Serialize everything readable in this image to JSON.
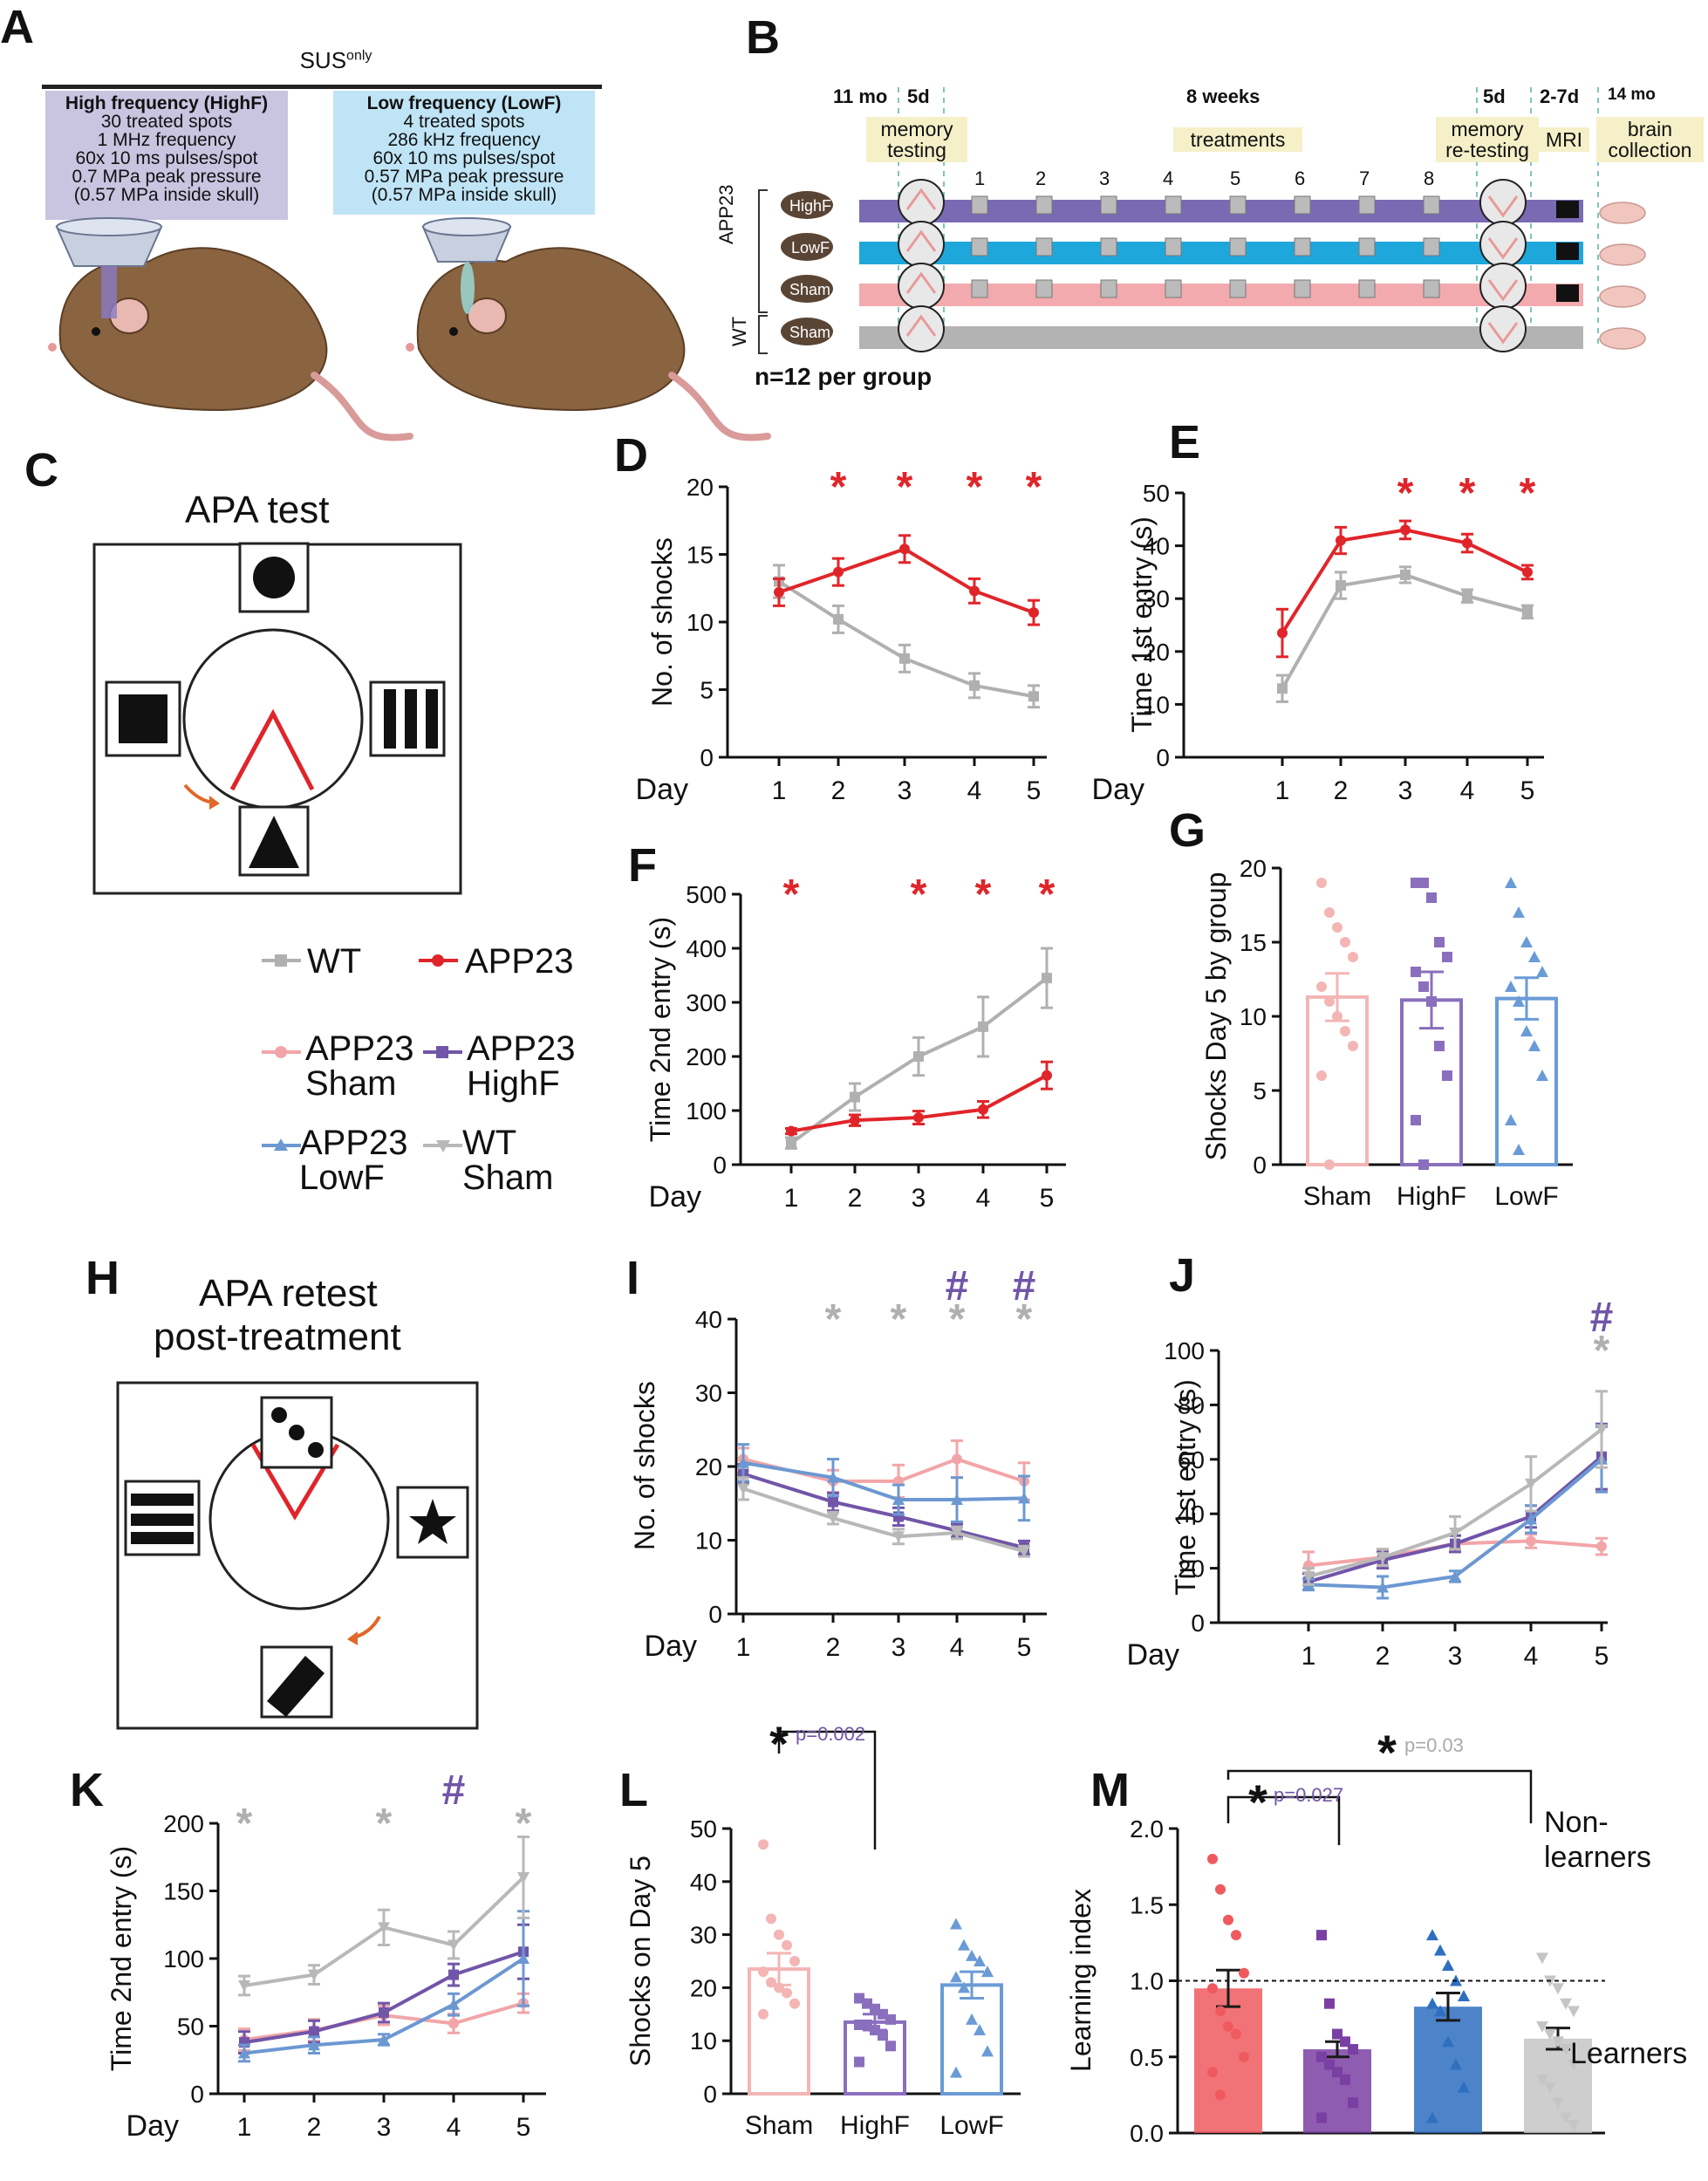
{
  "panels": {
    "A": {
      "letter": "A",
      "sus_header": "SUSonly",
      "highf": {
        "title": "High frequency (HighF)",
        "lines": [
          "30 treated spots",
          "1 MHz frequency",
          "60x 10 ms pulses/spot",
          "0.7 MPa peak pressure",
          "(0.57 MPa inside skull)"
        ]
      },
      "lowf": {
        "title": "Low frequency (LowF)",
        "lines": [
          "4 treated spots",
          "286 kHz frequency",
          "60x 10 ms pulses/spot",
          "0.57 MPa peak pressure",
          "(0.57 MPa inside skull)"
        ]
      }
    },
    "B": {
      "letter": "B",
      "labels": {
        "t11": "11 mo",
        "d5a": "5d",
        "weeks": "8 weeks",
        "d5b": "5d",
        "d27": "2-7d",
        "m14": "14 mo",
        "memtest": "memory testing",
        "treat": "treatments",
        "retest": "memory re-testing",
        "mri": "MRI",
        "brain": "brain collection",
        "app23": "APP23",
        "wt": "WT",
        "n": "n=12 per group"
      },
      "week_numbers": [
        "1",
        "2",
        "3",
        "4",
        "5",
        "6",
        "7",
        "8"
      ],
      "rows": [
        "HighF",
        "LowF",
        "Sham",
        "Sham"
      ],
      "colors": {
        "highf": "#7a6ab3",
        "lowf": "#1ea7db",
        "sham": "#f2aaae",
        "wt": "#b3b3b3"
      }
    },
    "C": {
      "letter": "C",
      "title": "APA test"
    },
    "H": {
      "letter": "H",
      "title_line1": "APA retest",
      "title_line2": "post-treatment"
    },
    "legend": {
      "wt": "WT",
      "app23": "APP23",
      "app23sham_1": "APP23",
      "app23sham_2": "Sham",
      "app23highf_1": "APP23",
      "app23highf_2": "HighF",
      "app23lowf_1": "APP23",
      "app23lowf_2": "LowF",
      "wtsham_1": "WT",
      "wtsham_2": "Sham"
    }
  },
  "colors": {
    "wt": "#b0b0b0",
    "app23": "#e0252a",
    "sham": "#f2a5a8",
    "highf": "#7155a8",
    "lowf": "#6c98d2",
    "wtsham": "#b8b8b8",
    "sham_bar": "#f4b5b5",
    "highf_bar": "#8a6fbd",
    "lowf_bar": "#6a9bd6",
    "m_sham": "#ef5a5f",
    "m_highf": "#7a3fa3",
    "m_lowf": "#2e6fc0",
    "m_wt": "#c5c5c5"
  },
  "chart_data": [
    {
      "id": "D",
      "type": "line",
      "letter": "D",
      "ylabel": "No. of shocks",
      "xlabel": "Day",
      "x": [
        1,
        2,
        3,
        4,
        5
      ],
      "ylim": [
        0,
        20
      ],
      "yticks": [
        0,
        5,
        10,
        15,
        20
      ],
      "series": [
        {
          "name": "WT",
          "values": [
            13,
            10.2,
            7.3,
            5.3,
            4.5
          ],
          "err": [
            1.2,
            1.0,
            1.0,
            0.9,
            0.8
          ]
        },
        {
          "name": "APP23",
          "values": [
            12.2,
            13.7,
            15.4,
            12.3,
            10.7
          ],
          "err": [
            1.0,
            1.0,
            1.0,
            0.9,
            0.9
          ]
        }
      ],
      "sig": {
        "symbol": "*",
        "days": [
          2,
          3,
          4,
          5
        ]
      }
    },
    {
      "id": "E",
      "type": "line",
      "letter": "E",
      "ylabel": "Time 1st entry (s)",
      "xlabel": "Day",
      "x": [
        1,
        2,
        3,
        4,
        5
      ],
      "ylim": [
        0,
        50
      ],
      "yticks": [
        0,
        10,
        20,
        30,
        40,
        50
      ],
      "series": [
        {
          "name": "WT",
          "values": [
            13,
            32.5,
            34.5,
            30.5,
            27.5
          ],
          "err": [
            2.5,
            2.5,
            1.5,
            1.2,
            1.2
          ]
        },
        {
          "name": "APP23",
          "values": [
            23.5,
            41,
            43,
            40.5,
            35
          ],
          "err": [
            4.5,
            2.5,
            1.7,
            1.7,
            1.3
          ]
        }
      ],
      "sig": {
        "symbol": "*",
        "days": [
          3,
          4,
          5
        ]
      }
    },
    {
      "id": "F",
      "type": "line",
      "letter": "F",
      "ylabel": "Time 2nd entry (s)",
      "xlabel": "Day",
      "x": [
        1,
        2,
        3,
        4,
        5
      ],
      "ylim": [
        0,
        500
      ],
      "yticks": [
        0,
        100,
        200,
        300,
        400,
        500
      ],
      "series": [
        {
          "name": "WT",
          "values": [
            40,
            125,
            200,
            255,
            345
          ],
          "err": [
            10,
            25,
            35,
            55,
            55
          ]
        },
        {
          "name": "APP23",
          "values": [
            62,
            82,
            87,
            102,
            165
          ],
          "err": [
            5,
            10,
            12,
            15,
            25
          ]
        }
      ],
      "sig": {
        "symbol": "*",
        "days": [
          1,
          3,
          4,
          5
        ]
      }
    },
    {
      "id": "G",
      "type": "bar",
      "letter": "G",
      "ylabel": "Shocks Day 5 by group",
      "categories": [
        "Sham",
        "HighF",
        "LowF"
      ],
      "values": [
        11.3,
        11.1,
        11.2
      ],
      "err": [
        1.6,
        1.9,
        1.4
      ],
      "ylim": [
        0,
        20
      ],
      "yticks": [
        0,
        5,
        10,
        15,
        20
      ],
      "points": [
        [
          19,
          17,
          16,
          15,
          14,
          12,
          11,
          10,
          9,
          8,
          6,
          0
        ],
        [
          19,
          19,
          18,
          15,
          14,
          13,
          12,
          11,
          8,
          6,
          3,
          0
        ],
        [
          19,
          17,
          15,
          14,
          13,
          12,
          11,
          9,
          8,
          6,
          3,
          1
        ]
      ]
    },
    {
      "id": "I",
      "type": "line",
      "letter": "I",
      "ylabel": "No. of shocks",
      "xlabel": "Day",
      "x": [
        1,
        2,
        3,
        4,
        5
      ],
      "ylim": [
        0,
        40
      ],
      "yticks": [
        0,
        10,
        20,
        30,
        40
      ],
      "series": [
        {
          "name": "APP23 Sham",
          "values": [
            21,
            18,
            18,
            21,
            18
          ],
          "err": [
            1.5,
            1.5,
            2.2,
            2.5,
            2.5
          ]
        },
        {
          "name": "APP23 HighF",
          "values": [
            19,
            15.2,
            13.2,
            11.3,
            9
          ],
          "err": [
            1.3,
            1.2,
            1.2,
            0.9,
            0.9
          ]
        },
        {
          "name": "APP23 LowF",
          "values": [
            20.5,
            18.5,
            15.5,
            15.5,
            15.7
          ],
          "err": [
            2.5,
            2.5,
            2.0,
            3.0,
            3.0
          ]
        },
        {
          "name": "WT Sham",
          "values": [
            17,
            13,
            10.5,
            11,
            8.5
          ],
          "err": [
            1.5,
            0.8,
            1.0,
            0.8,
            0.7
          ]
        }
      ],
      "sig": [
        {
          "symbol": "*",
          "days": [
            2,
            3,
            4,
            5
          ],
          "color": "wt"
        },
        {
          "symbol": "#",
          "days": [
            4,
            5
          ],
          "color": "highf"
        }
      ]
    },
    {
      "id": "J",
      "type": "line",
      "letter": "J",
      "ylabel": "Time 1st entry (s)",
      "xlabel": "Day",
      "x": [
        1,
        2,
        3,
        4,
        5
      ],
      "ylim": [
        0,
        100
      ],
      "yticks": [
        0,
        20,
        40,
        60,
        80,
        100
      ],
      "series": [
        {
          "name": "APP23 Sham",
          "values": [
            21,
            24,
            29,
            30,
            28
          ],
          "err": [
            5,
            3,
            3,
            2.5,
            3
          ]
        },
        {
          "name": "APP23 HighF",
          "values": [
            15,
            23,
            29,
            39,
            61
          ],
          "err": [
            3,
            3,
            3,
            4,
            12
          ]
        },
        {
          "name": "APP23 LowF",
          "values": [
            14,
            13,
            17,
            38,
            60
          ],
          "err": [
            2,
            4,
            2,
            5,
            12
          ]
        },
        {
          "name": "WT Sham",
          "values": [
            17,
            24,
            33,
            51,
            71
          ],
          "err": [
            3,
            3,
            6,
            10,
            14
          ]
        }
      ],
      "sig": [
        {
          "symbol": "*",
          "days": [
            5
          ],
          "color": "wt"
        },
        {
          "symbol": "#",
          "days": [
            5
          ],
          "color": "highf"
        }
      ]
    },
    {
      "id": "K",
      "type": "line",
      "letter": "K",
      "ylabel": "Time 2nd entry (s)",
      "xlabel": "Day",
      "x": [
        1,
        2,
        3,
        4,
        5
      ],
      "ylim": [
        0,
        200
      ],
      "yticks": [
        0,
        50,
        100,
        150,
        200
      ],
      "series": [
        {
          "name": "APP23 Sham",
          "values": [
            40,
            47,
            58,
            52,
            67
          ],
          "err": [
            8,
            8,
            7,
            7,
            7
          ]
        },
        {
          "name": "APP23 HighF",
          "values": [
            38,
            46,
            60,
            88,
            105
          ],
          "err": [
            8,
            8,
            7,
            8,
            20
          ]
        },
        {
          "name": "APP23 LowF",
          "values": [
            30,
            36,
            40,
            66,
            100
          ],
          "err": [
            6,
            6,
            4,
            8,
            35
          ]
        },
        {
          "name": "WT Sham",
          "values": [
            80,
            88,
            123,
            110,
            160
          ],
          "err": [
            7,
            7,
            13,
            10,
            30
          ]
        }
      ],
      "sig": [
        {
          "symbol": "*",
          "days": [
            1,
            3,
            5
          ],
          "color": "wt"
        },
        {
          "symbol": "#",
          "days": [
            4
          ],
          "color": "highf"
        }
      ]
    },
    {
      "id": "L",
      "type": "bar",
      "letter": "L",
      "ylabel": "Shocks on Day 5",
      "categories": [
        "Sham",
        "HighF",
        "LowF"
      ],
      "values": [
        23.5,
        13.5,
        20.5
      ],
      "err": [
        3,
        1.5,
        2.5
      ],
      "ylim": [
        0,
        50
      ],
      "yticks": [
        0,
        10,
        20,
        30,
        40,
        50
      ],
      "points": [
        [
          47,
          33,
          30,
          28,
          25,
          23,
          21,
          20,
          19,
          17,
          15
        ],
        [
          18,
          17,
          16,
          15,
          14,
          13,
          13,
          12,
          11,
          9,
          6
        ],
        [
          32,
          28,
          26,
          25,
          23,
          22,
          20,
          14,
          12,
          8,
          4
        ]
      ],
      "annotation": {
        "symbol": "*",
        "text": "p=0.002"
      }
    },
    {
      "id": "M",
      "type": "bar",
      "letter": "M",
      "ylabel": "Learning index",
      "categories": [
        "",
        "",
        "",
        ""
      ],
      "values": [
        0.95,
        0.55,
        0.83,
        0.62
      ],
      "err": [
        0.12,
        0.05,
        0.09,
        0.07
      ],
      "ylim": [
        0,
        2.0
      ],
      "yticks": [
        "0.0",
        "0.5",
        "1.0",
        "1.5",
        "2.0"
      ],
      "threshold": 1.0,
      "points": [
        [
          1.8,
          1.6,
          1.4,
          1.3,
          1.05,
          0.95,
          0.8,
          0.7,
          0.65,
          0.5,
          0.4,
          0.25
        ],
        [
          1.3,
          0.85,
          0.65,
          0.6,
          0.55,
          0.5,
          0.45,
          0.4,
          0.35,
          0.2,
          0.1
        ],
        [
          1.3,
          1.2,
          1.1,
          1.0,
          0.9,
          0.85,
          0.8,
          0.6,
          0.45,
          0.3,
          0.1
        ],
        [
          1.15,
          1.0,
          0.95,
          0.85,
          0.8,
          0.7,
          0.65,
          0.6,
          0.55,
          0.45,
          0.35,
          0.3,
          0.2,
          0.1,
          0.05
        ]
      ],
      "annotations": [
        {
          "symbol": "*",
          "text": "p=0.027"
        },
        {
          "symbol": "*",
          "text": "p=0.03"
        }
      ],
      "side_labels": {
        "top": "Non-",
        "top2": "learners",
        "bottom": "Learners"
      }
    }
  ]
}
